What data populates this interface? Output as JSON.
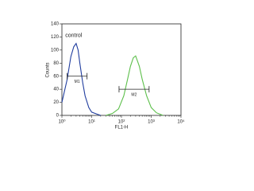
{
  "chart_data": {
    "type": "line",
    "xlabel": "FL1-H",
    "ylabel": "Counts",
    "annotations": [
      {
        "text": "control",
        "x": 1.3,
        "y": 122
      }
    ],
    "gates": [
      {
        "label": "M1",
        "x": [
          1.5,
          7
        ],
        "y": 60
      },
      {
        "label": "M2",
        "x": [
          83,
          850
        ],
        "y": 40
      }
    ],
    "xscale": "log",
    "xlim": [
      1,
      10000
    ],
    "xticks": [
      {
        "value": 1,
        "label": "10⁰"
      },
      {
        "value": 10,
        "label": "10¹"
      },
      {
        "value": 100,
        "label": "10²"
      },
      {
        "value": 1000,
        "label": "10³"
      },
      {
        "value": 10000,
        "label": "10⁴"
      }
    ],
    "ylim": [
      0,
      140
    ],
    "yticks": [
      0,
      20,
      40,
      60,
      80,
      100,
      120,
      140
    ],
    "series": [
      {
        "color": "#1f3c9e",
        "x": [
          1,
          1.5,
          2,
          2.5,
          3,
          3.5,
          4,
          5,
          6,
          8,
          10,
          15,
          20
        ],
        "values": [
          20,
          55,
          90,
          105,
          110,
          100,
          80,
          50,
          30,
          12,
          5,
          2,
          0
        ]
      },
      {
        "color": "#5cbf4a",
        "x": [
          30,
          50,
          80,
          120,
          160,
          200,
          250,
          300,
          400,
          500,
          700,
          1000,
          1500,
          2500
        ],
        "values": [
          0,
          3,
          10,
          30,
          55,
          75,
          88,
          91,
          75,
          55,
          30,
          12,
          4,
          0
        ]
      }
    ]
  }
}
